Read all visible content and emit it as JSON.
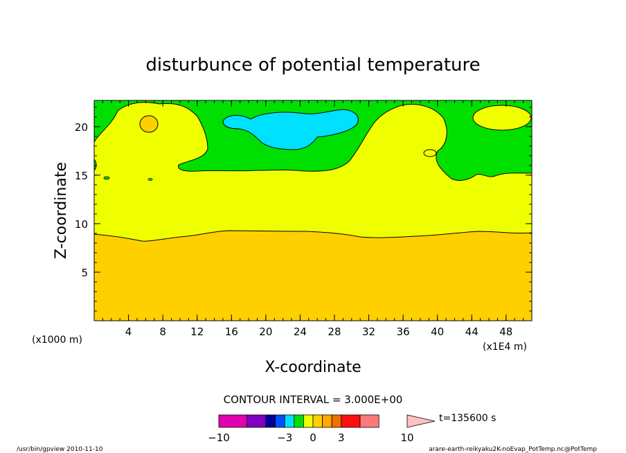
{
  "chart_data": {
    "type": "heatmap",
    "title": "disturbunce of potential temperature",
    "xlabel": "X-coordinate",
    "ylabel": "Z-coordinate",
    "x_unit_left": "(x1000 m)",
    "x_unit_right": "(x1E4 m)",
    "x_ticks": [
      {
        "value": 4,
        "label": "4"
      },
      {
        "value": 8,
        "label": "8"
      },
      {
        "value": 12,
        "label": "12"
      },
      {
        "value": 16,
        "label": "16"
      },
      {
        "value": 20,
        "label": "20"
      },
      {
        "value": 24,
        "label": "24"
      },
      {
        "value": 28,
        "label": "28"
      },
      {
        "value": 32,
        "label": "32"
      },
      {
        "value": 36,
        "label": "36"
      },
      {
        "value": 40,
        "label": "40"
      },
      {
        "value": 44,
        "label": "44"
      },
      {
        "value": 48,
        "label": "48"
      }
    ],
    "y_ticks": [
      {
        "value": 5,
        "label": "5"
      },
      {
        "value": 10,
        "label": "10"
      },
      {
        "value": 15,
        "label": "15"
      },
      {
        "value": 20,
        "label": "20"
      }
    ],
    "xlim": [
      0,
      51
    ],
    "ylim": [
      0,
      22.7
    ],
    "contour_interval": "CONTOUR INTERVAL = 3.000E+00",
    "time_label": "t=135600 s",
    "colorbar": {
      "colors": [
        "#e000b0",
        "#8000c0",
        "#0000a0",
        "#0050ff",
        "#00e0ff",
        "#00e000",
        "#f0ff00",
        "#ffd000",
        "#ffa800",
        "#f07000",
        "#ff1010",
        "#ff7878",
        "#ffc0c0"
      ],
      "tick_labels": [
        {
          "value": -10,
          "label": "−10"
        },
        {
          "value": -3,
          "label": "−3"
        },
        {
          "value": 0,
          "label": "0"
        },
        {
          "value": 3,
          "label": "3"
        },
        {
          "value": 10,
          "label": "10"
        }
      ]
    },
    "regions": [
      {
        "name": "positive-large",
        "color": "#ffd000",
        "z_range": [
          0,
          9.3
        ]
      },
      {
        "name": "positive-small",
        "color": "#f0ff00",
        "z_range": [
          9.3,
          15.5
        ]
      },
      {
        "name": "near-zero",
        "color": "#00e000",
        "z_range": [
          15.5,
          22.7
        ]
      },
      {
        "name": "negative-small",
        "color": "#00e0ff",
        "z_range": [
          18.5,
          21.5
        ]
      }
    ]
  },
  "footer": {
    "left": "/usr/bin/gpview   2010-11-10",
    "right": "arare-earth-reikyaku2K-noEvap_PotTemp.nc@PotTemp"
  }
}
